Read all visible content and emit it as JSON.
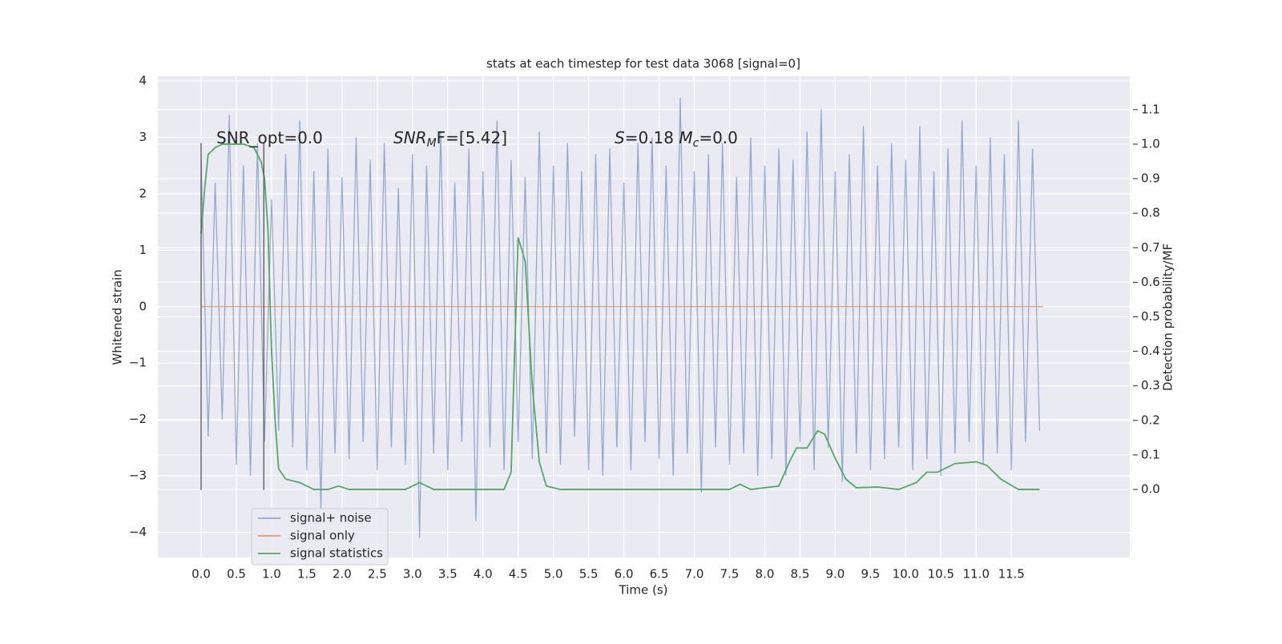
{
  "chart_data": {
    "type": "line",
    "title": "stats at each timestep for test data 3068 [signal=0]",
    "x_label": "Time (s)",
    "y_label": "Whitened strain",
    "y2_label": "Detection probability/MF",
    "xlim": [
      -0.614,
      13.18
    ],
    "ylim": [
      -4.446,
      4.085
    ],
    "y2lim": [
      -0.197,
      1.197
    ],
    "xticks": [
      {
        "value": 0,
        "label": "0.0"
      },
      {
        "value": 0.5,
        "label": "0.5"
      },
      {
        "value": 1,
        "label": "1.0"
      },
      {
        "value": 1.5,
        "label": "1.5"
      },
      {
        "value": 2,
        "label": "2.0"
      },
      {
        "value": 2.5,
        "label": "2.5"
      },
      {
        "value": 3,
        "label": "3.0"
      },
      {
        "value": 3.5,
        "label": "3.5"
      },
      {
        "value": 4,
        "label": "4.0"
      },
      {
        "value": 4.5,
        "label": "4.5"
      },
      {
        "value": 5,
        "label": "5.0"
      },
      {
        "value": 5.5,
        "label": "5.5"
      },
      {
        "value": 6,
        "label": "6.0"
      },
      {
        "value": 6.5,
        "label": "6.5"
      },
      {
        "value": 7,
        "label": "7.0"
      },
      {
        "value": 7.5,
        "label": "7.5"
      },
      {
        "value": 8,
        "label": "8.0"
      },
      {
        "value": 8.5,
        "label": "8.5"
      },
      {
        "value": 9,
        "label": "9.0"
      },
      {
        "value": 9.5,
        "label": "9.5"
      },
      {
        "value": 10,
        "label": "10.0"
      },
      {
        "value": 10.5,
        "label": "10.5"
      },
      {
        "value": 11,
        "label": "11.0"
      },
      {
        "value": 11.5,
        "label": "11.5"
      }
    ],
    "yticks": [
      {
        "value": -4,
        "label": "−4"
      },
      {
        "value": -3,
        "label": "−3"
      },
      {
        "value": -2,
        "label": "−2"
      },
      {
        "value": -1,
        "label": "−1"
      },
      0,
      1,
      2,
      3,
      4
    ],
    "y2ticks": [
      {
        "value": 0,
        "label": "0.0"
      },
      {
        "value": 0.1,
        "label": "0.1"
      },
      {
        "value": 0.2,
        "label": "0.2"
      },
      {
        "value": 0.3,
        "label": "0.3"
      },
      {
        "value": 0.4,
        "label": "0.4"
      },
      {
        "value": 0.5,
        "label": "0.5"
      },
      {
        "value": 0.6,
        "label": "0.6"
      },
      {
        "value": 0.7,
        "label": "0.7"
      },
      {
        "value": 0.8,
        "label": "0.8"
      },
      {
        "value": 0.9,
        "label": "0.9"
      },
      {
        "value": 1,
        "label": "1.0"
      },
      {
        "value": 1.1,
        "label": "1.1"
      }
    ],
    "grid": true,
    "legend": "lower left",
    "series": [
      {
        "name": "signal+ noise",
        "color": "#4c72b0",
        "alpha": 0.55,
        "axis": "y",
        "x": [
          0,
          0.1,
          0.2,
          0.3,
          0.4,
          0.5,
          0.6,
          0.7,
          0.8,
          0.9,
          1,
          1.1,
          1.2,
          1.3,
          1.4,
          1.5,
          1.6,
          1.7,
          1.8,
          1.9,
          2,
          2.1,
          2.2,
          2.3,
          2.4,
          2.5,
          2.6,
          2.7,
          2.8,
          2.9,
          3,
          3.1,
          3.2,
          3.3,
          3.4,
          3.5,
          3.6,
          3.7,
          3.8,
          3.9,
          4,
          4.1,
          4.2,
          4.3,
          4.4,
          4.5,
          4.6,
          4.7,
          4.8,
          4.9,
          5,
          5.1,
          5.2,
          5.3,
          5.4,
          5.5,
          5.6,
          5.7,
          5.8,
          5.9,
          6,
          6.1,
          6.2,
          6.3,
          6.4,
          6.5,
          6.6,
          6.7,
          6.8,
          6.9,
          7,
          7.1,
          7.2,
          7.3,
          7.4,
          7.5,
          7.6,
          7.7,
          7.8,
          7.9,
          8,
          8.1,
          8.2,
          8.3,
          8.4,
          8.5,
          8.6,
          8.7,
          8.8,
          8.9,
          9,
          9.1,
          9.2,
          9.3,
          9.4,
          9.5,
          9.6,
          9.7,
          9.8,
          9.9,
          10,
          10.1,
          10.2,
          10.3,
          10.4,
          10.5,
          10.6,
          10.7,
          10.8,
          10.9,
          11,
          11.1,
          11.2,
          11.3,
          11.4,
          11.5,
          11.6,
          11.7,
          11.8,
          11.9
        ],
        "values": [
          2.6,
          -2.3,
          2.2,
          -2.0,
          3.4,
          -2.8,
          2.5,
          -3.0,
          2.9,
          -2.4,
          1.9,
          -2.2,
          2.7,
          -2.5,
          3.3,
          -2.9,
          2.4,
          -3.6,
          2.8,
          -2.6,
          2.3,
          -2.7,
          3.0,
          -2.4,
          2.6,
          -2.9,
          2.9,
          -2.5,
          2.1,
          -2.8,
          2.7,
          -4.1,
          2.5,
          -2.6,
          3.1,
          -2.9,
          2.2,
          -2.4,
          2.8,
          -3.8,
          2.4,
          -2.5,
          3.3,
          -2.9,
          2.6,
          -2.4,
          2.3,
          -2.7,
          3.1,
          -2.6,
          2.5,
          -2.8,
          2.9,
          -2.3,
          2.4,
          -2.9,
          2.7,
          -3.0,
          2.8,
          -2.5,
          2.2,
          -2.9,
          2.9,
          -2.4,
          3.0,
          -2.7,
          2.5,
          -3.0,
          3.7,
          -2.6,
          2.4,
          -3.3,
          2.7,
          -2.5,
          2.9,
          -2.8,
          2.3,
          -2.6,
          3.0,
          -3.0,
          2.5,
          -2.7,
          2.8,
          -3.0,
          2.6,
          -2.4,
          3.1,
          -2.9,
          3.5,
          -2.5,
          2.4,
          -3.1,
          2.7,
          -2.6,
          3.2,
          -2.9,
          2.5,
          -2.7,
          2.9,
          -2.5,
          2.6,
          -2.9,
          3.2,
          -2.7,
          2.4,
          -3.0,
          2.8,
          -2.6,
          3.3,
          -2.4,
          2.5,
          -2.8,
          3.0,
          -2.6,
          2.7,
          -2.9,
          3.3,
          -2.4,
          2.8,
          -2.2
        ]
      },
      {
        "name": "signal only",
        "color": "#dd8452",
        "alpha": 0.8,
        "axis": "y",
        "x": [
          0,
          11.95
        ],
        "values": [
          0,
          0
        ]
      },
      {
        "name": "signal statistics",
        "color": "#55a868",
        "alpha": 1,
        "axis": "y2",
        "x": [
          0,
          0.05,
          0.1,
          0.2,
          0.3,
          0.6,
          0.75,
          0.85,
          0.9,
          0.95,
          1.0,
          1.05,
          1.1,
          1.2,
          1.4,
          1.6,
          1.8,
          1.95,
          2.1,
          2.5,
          2.9,
          3.1,
          3.3,
          4.0,
          4.3,
          4.4,
          4.45,
          4.5,
          4.6,
          4.7,
          4.8,
          4.9,
          5.1,
          6.5,
          7.0,
          7.5,
          7.65,
          7.8,
          8.2,
          8.35,
          8.45,
          8.6,
          8.75,
          8.85,
          9.0,
          9.15,
          9.3,
          9.6,
          9.9,
          10.15,
          10.3,
          10.45,
          10.7,
          11.0,
          11.15,
          11.35,
          11.6,
          11.9
        ],
        "values": [
          0.74,
          0.87,
          0.97,
          0.99,
          1.0,
          1.0,
          0.99,
          0.95,
          0.9,
          0.75,
          0.4,
          0.2,
          0.06,
          0.03,
          0.02,
          0.0,
          0.0,
          0.01,
          0.0,
          0.0,
          0.0,
          0.02,
          0.0,
          0.0,
          0.0,
          0.05,
          0.4,
          0.73,
          0.66,
          0.3,
          0.08,
          0.01,
          0.0,
          0.0,
          0.0,
          0.0,
          0.015,
          0.0,
          0.01,
          0.08,
          0.12,
          0.12,
          0.17,
          0.16,
          0.09,
          0.03,
          0.005,
          0.007,
          0.0,
          0.02,
          0.05,
          0.05,
          0.075,
          0.08,
          0.07,
          0.03,
          0.0,
          0.0
        ]
      }
    ],
    "vlines": {
      "color": "#555555",
      "x": [
        0,
        0.89
      ],
      "ymin": -3.25,
      "ymax": 2.9
    },
    "annotations": [
      [
        {
          "text": "SNR_opt=0.0",
          "style": "normal"
        }
      ],
      [
        {
          "text": "SNR",
          "style": "italic"
        },
        {
          "text": "M",
          "style": "sub"
        },
        {
          "text": "F=[5.42]",
          "style": "normal"
        }
      ],
      [
        {
          "text": "S",
          "style": "italic"
        },
        {
          "text": "=0.18   ",
          "style": "normal"
        },
        {
          "text": "M",
          "style": "italic"
        },
        {
          "text": "c",
          "style": "sub"
        },
        {
          "text": "=0.0",
          "style": "normal"
        }
      ]
    ]
  }
}
